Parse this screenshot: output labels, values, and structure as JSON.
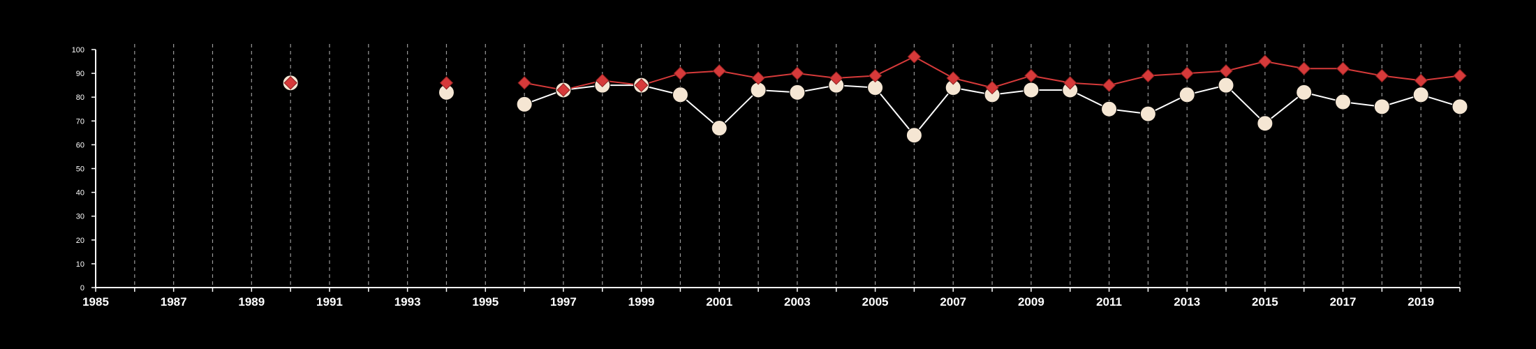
{
  "chart_data": {
    "type": "line",
    "title": "",
    "xlabel": "",
    "ylabel": "",
    "xlim": [
      1985,
      2020
    ],
    "ylim": [
      0,
      100
    ],
    "x_tick_labels": [
      "1985",
      "1987",
      "1989",
      "1991",
      "1993",
      "1995",
      "1997",
      "1999",
      "2001",
      "2003",
      "2005",
      "2007",
      "2009",
      "2011",
      "2013",
      "2015",
      "2017",
      "2019"
    ],
    "y_tick_labels": [
      "0",
      "10",
      "20",
      "30",
      "40",
      "50",
      "60",
      "70",
      "80",
      "90",
      "100"
    ],
    "grid": "vertical dashed lines at each year",
    "series": [
      {
        "marker": "circle",
        "color": "#f5e6d3",
        "points": [
          [
            1990,
            86
          ],
          [
            1994,
            82
          ],
          [
            1996,
            77
          ],
          [
            1997,
            83
          ],
          [
            1998,
            85
          ],
          [
            1999,
            85
          ],
          [
            2000,
            81
          ],
          [
            2001,
            67
          ],
          [
            2002,
            83
          ],
          [
            2003,
            82
          ],
          [
            2004,
            85
          ],
          [
            2005,
            84
          ],
          [
            2006,
            64
          ],
          [
            2007,
            84
          ],
          [
            2008,
            81
          ],
          [
            2009,
            83
          ],
          [
            2010,
            83
          ],
          [
            2011,
            75
          ],
          [
            2012,
            73
          ],
          [
            2013,
            81
          ],
          [
            2014,
            85
          ],
          [
            2015,
            69
          ],
          [
            2016,
            82
          ],
          [
            2017,
            78
          ],
          [
            2018,
            76
          ],
          [
            2019,
            81
          ],
          [
            2020,
            76
          ]
        ]
      },
      {
        "marker": "diamond",
        "color": "#d63a3a",
        "points": [
          [
            1990,
            86
          ],
          [
            1994,
            86
          ],
          [
            1996,
            86
          ],
          [
            1997,
            83
          ],
          [
            1998,
            87
          ],
          [
            1999,
            85
          ],
          [
            2000,
            90
          ],
          [
            2001,
            91
          ],
          [
            2002,
            88
          ],
          [
            2003,
            90
          ],
          [
            2004,
            88
          ],
          [
            2005,
            89
          ],
          [
            2006,
            97
          ],
          [
            2007,
            88
          ],
          [
            2008,
            84
          ],
          [
            2009,
            89
          ],
          [
            2010,
            86
          ],
          [
            2011,
            85
          ],
          [
            2012,
            89
          ],
          [
            2013,
            90
          ],
          [
            2014,
            91
          ],
          [
            2015,
            95
          ],
          [
            2016,
            92
          ],
          [
            2017,
            92
          ],
          [
            2018,
            89
          ],
          [
            2019,
            87
          ],
          [
            2020,
            89
          ]
        ]
      }
    ]
  }
}
